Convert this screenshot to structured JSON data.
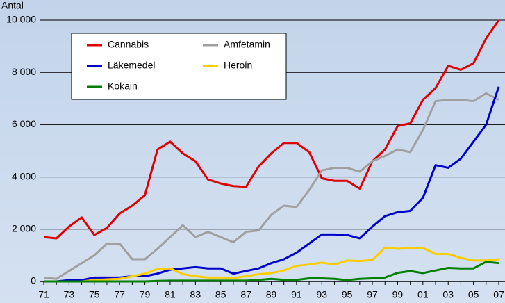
{
  "chart_data": {
    "type": "line",
    "y_label": "Antal",
    "categories": [
      "71",
      null,
      "73",
      null,
      "75",
      null,
      "77",
      null,
      "79",
      null,
      "81",
      null,
      "83",
      null,
      "85",
      null,
      "87",
      null,
      "89",
      null,
      "91",
      null,
      "93",
      null,
      "95",
      null,
      "97",
      null,
      "99",
      null,
      "01",
      null,
      "03",
      null,
      "05",
      null,
      "07"
    ],
    "series": [
      {
        "name": "Cannabis",
        "color": "#e00000",
        "values": [
          1700,
          1650,
          2100,
          2450,
          1780,
          2050,
          2600,
          2900,
          3300,
          5050,
          5350,
          4900,
          4600,
          3900,
          3750,
          3650,
          3620,
          4400,
          4900,
          5300,
          5300,
          4950,
          3950,
          3850,
          3850,
          3550,
          4600,
          5050,
          5950,
          6050,
          6950,
          7400,
          8250,
          8100,
          8350,
          9300,
          10000
        ]
      },
      {
        "name": "Amfetamin",
        "color": "#a0a0a0",
        "values": [
          150,
          100,
          400,
          700,
          1000,
          1450,
          1450,
          850,
          850,
          1250,
          1700,
          2150,
          1700,
          1900,
          1700,
          1500,
          1900,
          1950,
          2550,
          2900,
          2850,
          3500,
          4250,
          4350,
          4350,
          4200,
          4600,
          4800,
          5050,
          4950,
          5800,
          6900,
          6950,
          6950,
          6900,
          7200,
          6950
        ]
      },
      {
        "name": "Läkemedel",
        "color": "#0000cc",
        "values": [
          0,
          0,
          50,
          50,
          150,
          150,
          150,
          200,
          200,
          300,
          450,
          500,
          550,
          500,
          500,
          300,
          400,
          500,
          700,
          850,
          1100,
          1450,
          1800,
          1800,
          1780,
          1650,
          2100,
          2500,
          2650,
          2700,
          3200,
          4450,
          4350,
          4700,
          5350,
          6000,
          7450
        ]
      },
      {
        "name": "Heroin",
        "color": "#ffcc00",
        "values": [
          0,
          0,
          0,
          0,
          50,
          80,
          100,
          200,
          300,
          480,
          500,
          280,
          200,
          150,
          150,
          130,
          200,
          280,
          320,
          420,
          600,
          650,
          720,
          650,
          800,
          780,
          820,
          1300,
          1250,
          1280,
          1280,
          1050,
          1050,
          900,
          800,
          800,
          850
        ]
      },
      {
        "name": "Kokain",
        "color": "#008000",
        "values": [
          0,
          0,
          0,
          0,
          0,
          0,
          0,
          0,
          0,
          20,
          30,
          30,
          30,
          30,
          30,
          30,
          30,
          60,
          100,
          60,
          60,
          120,
          120,
          100,
          50,
          100,
          120,
          150,
          330,
          400,
          320,
          420,
          520,
          500,
          500,
          750,
          700
        ]
      }
    ],
    "ylim": [
      0,
      10000
    ],
    "yticks": [
      0,
      {
        "value": 2000,
        "label": "2 000"
      },
      {
        "value": 4000,
        "label": "4 000"
      },
      {
        "value": 6000,
        "label": "6 000"
      },
      {
        "value": 8000,
        "label": "8 000"
      },
      {
        "value": 10000,
        "label": "10 000"
      }
    ],
    "grid": true
  }
}
